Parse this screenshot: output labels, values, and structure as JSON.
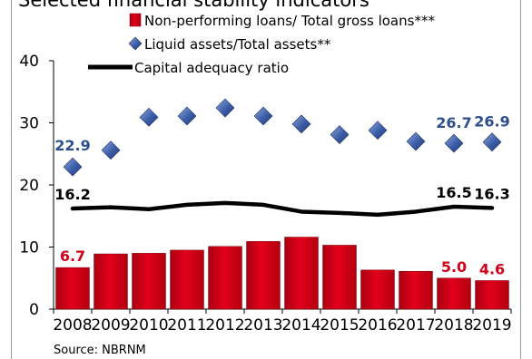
{
  "page": {
    "title": "Selected financial stability indicators",
    "source": "Source: NBRNM"
  },
  "colors": {
    "bar": "#e3001b",
    "diamond": "#3b5da8",
    "line": "#000000",
    "npl_label": "#d0021b",
    "liquid_label": "#2e4f8f",
    "car_label": "#000000"
  },
  "chart_data": {
    "type": "bar",
    "categories": [
      "2008",
      "2009",
      "2010",
      "2011",
      "2012",
      "2013",
      "2014",
      "2015",
      "2016",
      "2017",
      "2018",
      "2019"
    ],
    "ylim": [
      0,
      40
    ],
    "yticks": [
      0,
      10,
      20,
      30,
      40
    ],
    "legend_placement": "top",
    "series": [
      {
        "name": "Non-performing loans/ Total gross loans***",
        "kind": "bar",
        "values": [
          6.7,
          8.9,
          9.0,
          9.5,
          10.1,
          10.9,
          11.6,
          10.3,
          6.3,
          6.1,
          5.0,
          4.6
        ]
      },
      {
        "name": "Liquid assets/Total assets**",
        "kind": "scatter",
        "values": [
          22.9,
          25.6,
          30.9,
          31.1,
          32.4,
          31.1,
          29.8,
          28.1,
          28.8,
          27.0,
          26.7,
          26.9
        ]
      },
      {
        "name": "Capital adequacy ratio",
        "kind": "line",
        "values": [
          16.2,
          16.4,
          16.1,
          16.8,
          17.1,
          16.8,
          15.7,
          15.5,
          15.2,
          15.7,
          16.5,
          16.3
        ]
      }
    ],
    "data_labels": [
      {
        "series": 0,
        "index": 0,
        "text": "6.7"
      },
      {
        "series": 0,
        "index": 10,
        "text": "5.0"
      },
      {
        "series": 0,
        "index": 11,
        "text": "4.6"
      },
      {
        "series": 1,
        "index": 0,
        "text": "22.9"
      },
      {
        "series": 1,
        "index": 10,
        "text": "26.7"
      },
      {
        "series": 1,
        "index": 11,
        "text": "26.9"
      },
      {
        "series": 2,
        "index": 0,
        "text": "16.2"
      },
      {
        "series": 2,
        "index": 10,
        "text": "16.5"
      },
      {
        "series": 2,
        "index": 11,
        "text": "16.3"
      }
    ]
  }
}
